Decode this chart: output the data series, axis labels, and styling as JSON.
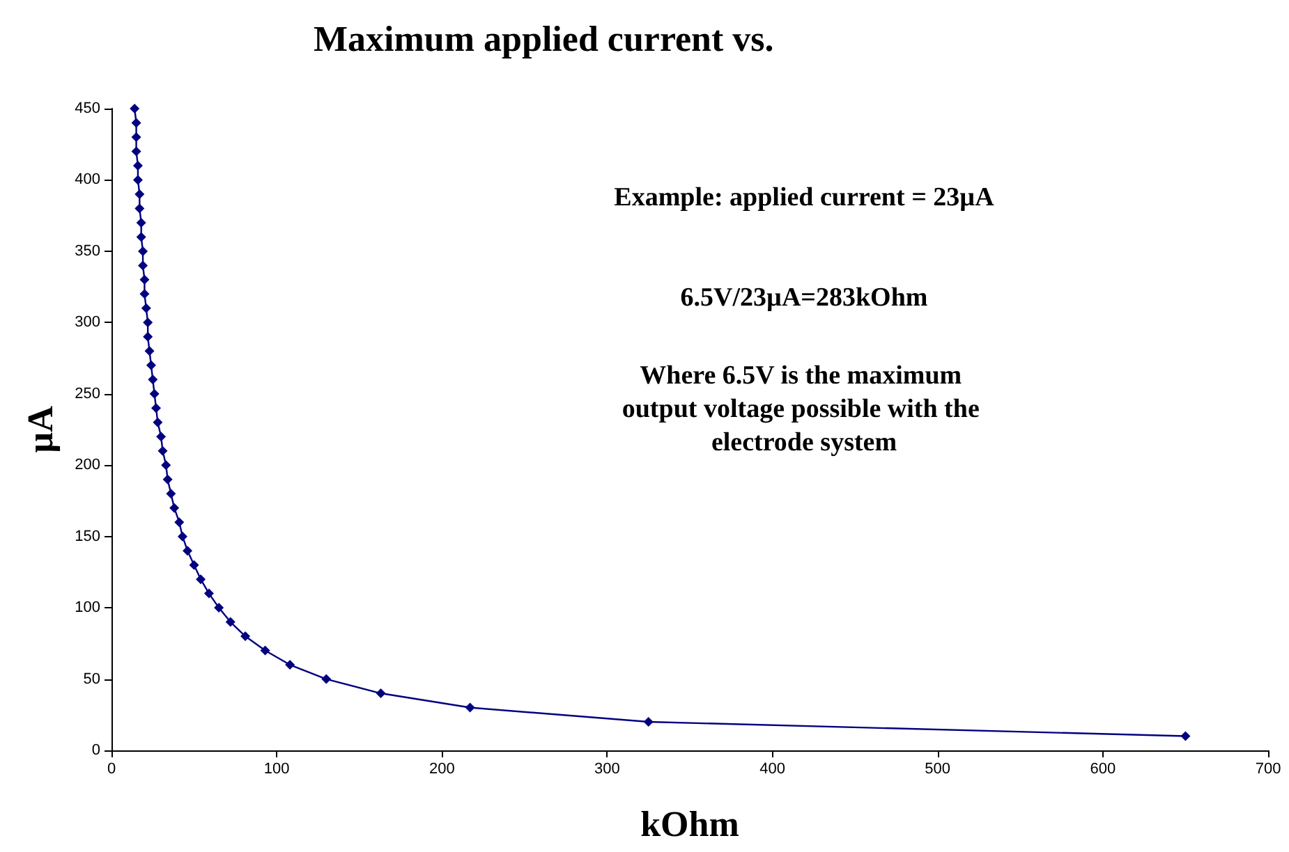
{
  "chart_data": {
    "type": "line",
    "title": "Maximum applied current vs.",
    "xlabel": "kOhm",
    "ylabel": "µA",
    "series": [
      {
        "color": "#000080",
        "x": [
          14,
          15,
          15,
          15,
          16,
          16,
          17,
          17,
          18,
          18,
          19,
          19,
          20,
          20,
          21,
          22,
          22,
          23,
          24,
          25,
          26,
          27,
          28,
          30,
          31,
          33,
          34,
          36,
          38,
          41,
          43,
          46,
          50,
          54,
          59,
          65,
          72,
          81,
          93,
          108,
          130,
          163,
          217,
          325,
          650
        ],
        "values": [
          450,
          440,
          430,
          420,
          410,
          400,
          390,
          380,
          370,
          360,
          350,
          340,
          330,
          320,
          310,
          300,
          290,
          280,
          270,
          260,
          250,
          240,
          230,
          220,
          210,
          200,
          190,
          180,
          170,
          160,
          150,
          140,
          130,
          120,
          110,
          100,
          90,
          80,
          70,
          60,
          50,
          40,
          30,
          20,
          10
        ]
      }
    ],
    "xlim": [
      0,
      700
    ],
    "xticks": [
      0,
      100,
      200,
      300,
      400,
      500,
      600,
      700
    ],
    "ylim": [
      0,
      450
    ],
    "yticks": [
      0,
      50,
      100,
      150,
      200,
      250,
      300,
      350,
      400,
      450
    ],
    "marker": "diamond",
    "line_style": "solid",
    "annotations": [
      "Example: applied current = 23µA",
      "6.5V/23µA=283kOhm",
      "Where 6.5V is the maximum output voltage possible with the electrode system"
    ]
  }
}
